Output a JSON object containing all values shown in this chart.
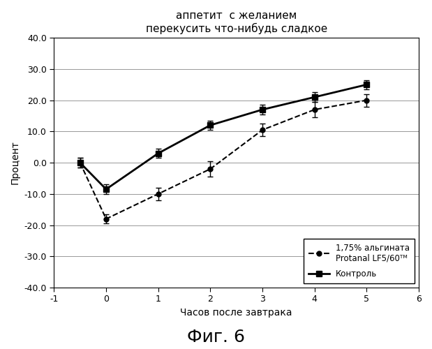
{
  "title": "аппетит  с желанием\nперекусить что-нибудь сладкое",
  "xlabel": "Часов после завтрака",
  "ylabel": "Процент",
  "fig_label": "Фиг. 6",
  "xlim": [
    -1,
    6
  ],
  "ylim": [
    -40,
    40
  ],
  "yticks": [
    -40,
    -30,
    -20,
    -10,
    0,
    10,
    20,
    30,
    40
  ],
  "xticks": [
    -1,
    0,
    1,
    2,
    3,
    4,
    5,
    6
  ],
  "series_alginate": {
    "x": [
      -0.5,
      0,
      1,
      2,
      3,
      4,
      5
    ],
    "y": [
      0,
      -18,
      -10,
      -2,
      10.5,
      17,
      20
    ],
    "yerr": [
      1.5,
      1.5,
      2.0,
      2.5,
      2.0,
      2.5,
      2.0
    ],
    "color": "#000000",
    "linestyle": "dashed",
    "marker": "o",
    "label": "1,75% альгината\nProtanal LF5/60ᵀᴹ"
  },
  "series_control": {
    "x": [
      -0.5,
      0,
      1,
      2,
      3,
      4,
      5
    ],
    "y": [
      0,
      -8.5,
      3,
      12,
      17,
      21,
      25
    ],
    "yerr": [
      1.5,
      1.5,
      1.5,
      1.5,
      1.5,
      1.5,
      1.5
    ],
    "color": "#000000",
    "linestyle": "solid",
    "marker": "s",
    "label": "Контроль"
  },
  "background_color": "#ffffff",
  "grid_color": "#888888"
}
